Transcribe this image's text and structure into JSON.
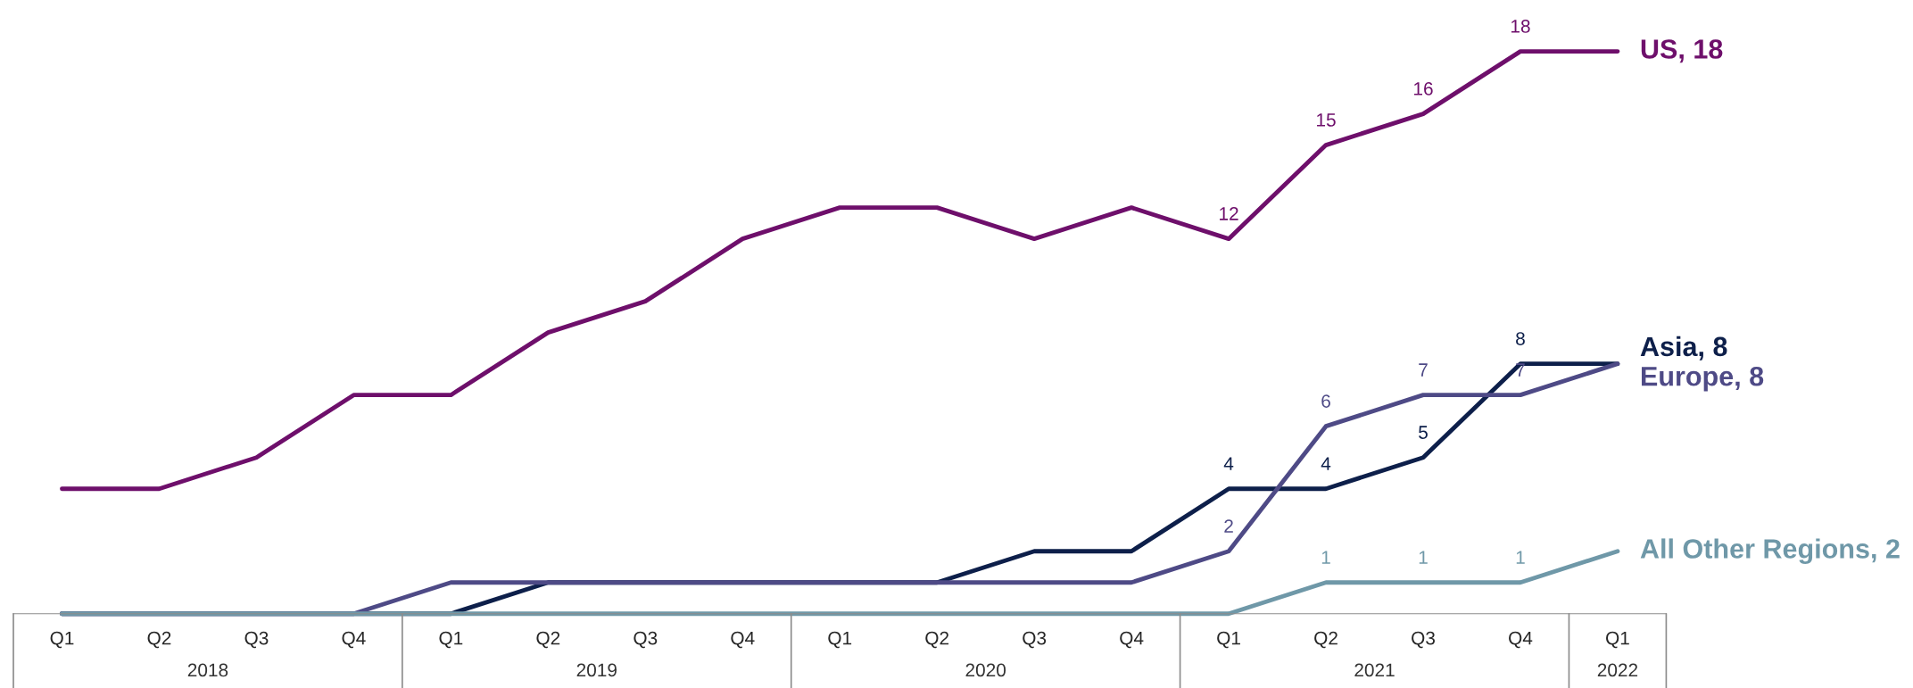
{
  "chart_data": {
    "type": "line",
    "categories": [
      "Q1",
      "Q2",
      "Q3",
      "Q4",
      "Q1",
      "Q2",
      "Q3",
      "Q4",
      "Q1",
      "Q2",
      "Q3",
      "Q4",
      "Q1",
      "Q2",
      "Q3",
      "Q4",
      "Q1"
    ],
    "annotations": [
      "2018",
      "2019",
      "2020",
      "2021",
      "2022"
    ],
    "tick_labels": "x",
    "grid": false,
    "legend": false,
    "marker": "none",
    "line_style": "solid",
    "series": [
      {
        "name": "US, 18",
        "color": "#6e0f6b",
        "values": [
          4,
          4,
          5,
          7,
          7,
          9,
          10,
          12,
          13,
          13,
          12,
          13,
          12,
          15,
          16,
          18,
          18
        ],
        "value_labels": [
          null,
          null,
          null,
          null,
          null,
          null,
          null,
          null,
          null,
          null,
          null,
          null,
          "12",
          "15",
          "16",
          "18",
          null
        ]
      },
      {
        "name": "Asia, 8",
        "color": "#0d1f4a",
        "values": [
          0,
          0,
          0,
          0,
          0,
          1,
          1,
          1,
          1,
          1,
          2,
          2,
          4,
          4,
          5,
          8,
          8
        ],
        "value_labels": [
          null,
          null,
          null,
          null,
          null,
          null,
          null,
          null,
          null,
          null,
          null,
          null,
          "4",
          "4",
          "5",
          "8",
          null
        ]
      },
      {
        "name": "Europe, 8",
        "color": "#4e4a86",
        "values": [
          0,
          0,
          0,
          0,
          1,
          1,
          1,
          1,
          1,
          1,
          1,
          1,
          2,
          6,
          7,
          7,
          8
        ],
        "value_labels": [
          null,
          null,
          null,
          null,
          null,
          null,
          null,
          null,
          null,
          null,
          null,
          null,
          "2",
          "6",
          "7",
          "7",
          null
        ]
      },
      {
        "name": "All Other Regions, 2",
        "color": "#6f98a8",
        "values": [
          0,
          0,
          0,
          0,
          0,
          0,
          0,
          0,
          0,
          0,
          0,
          0,
          0,
          1,
          1,
          1,
          2
        ],
        "value_labels": [
          null,
          null,
          null,
          null,
          null,
          null,
          null,
          null,
          null,
          null,
          null,
          null,
          null,
          "1",
          "1",
          "1",
          null
        ]
      }
    ]
  }
}
